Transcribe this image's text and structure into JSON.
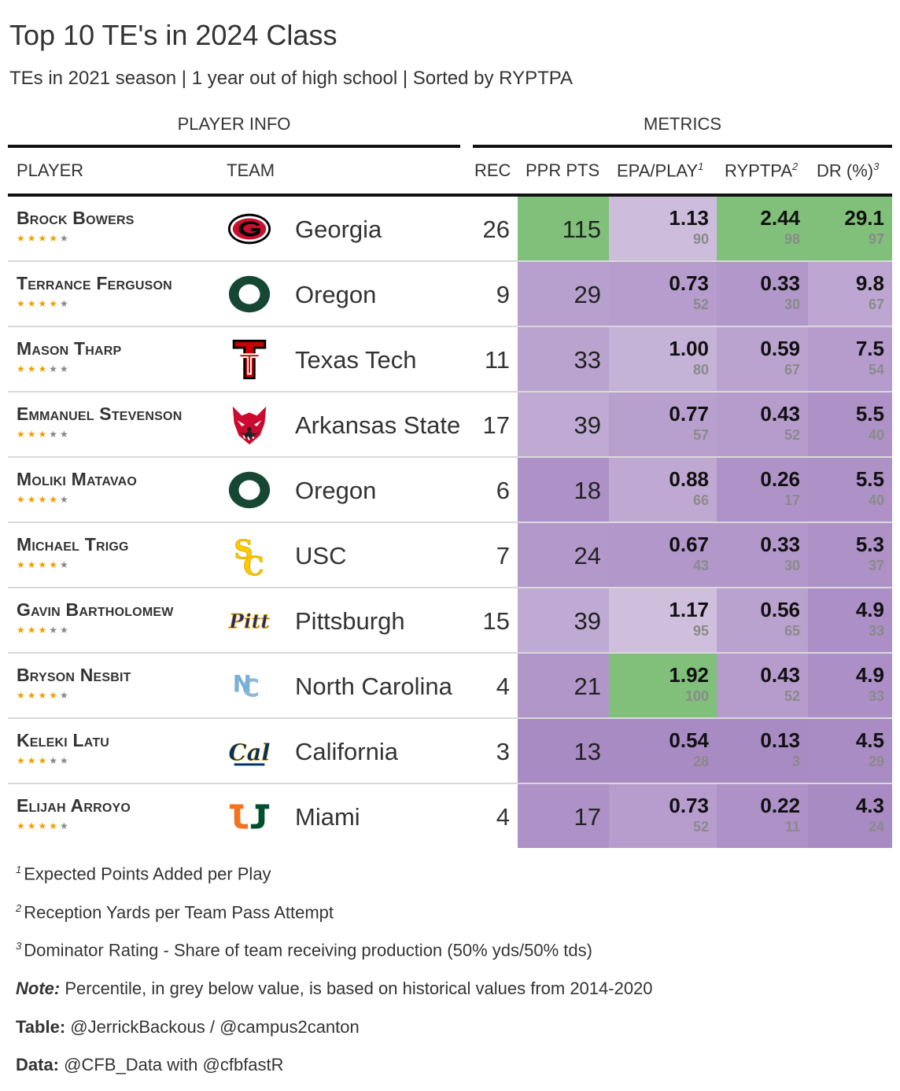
{
  "title": "Top 10 TE's in 2024 Class",
  "subtitle": "TEs in 2021 season | 1 year out of high school | Sorted by RYPTPA",
  "spanners": {
    "player_info": "PLAYER INFO",
    "metrics": "METRICS"
  },
  "columns": {
    "player": "PLAYER",
    "team": "TEAM",
    "rec": "REC",
    "ppr": "PPR PTS",
    "epa": "EPA/PLAY",
    "epa_sup": "1",
    "ryptpa": "RYPTPA",
    "ryptpa_sup": "2",
    "dr": "DR (%)",
    "dr_sup": "3"
  },
  "colors": {
    "purple_dark": "#a98bc4",
    "purple_light": "#f0ecf3",
    "green": "#80c07a",
    "star_on": "#f0a000",
    "star_off": "#888888"
  },
  "chart_data": {
    "type": "table",
    "rows": [
      {
        "player": "Brock Bowers",
        "stars": 4,
        "logo": "georgia-g-logo",
        "team": "Georgia",
        "rec": "26",
        "ppr": "115",
        "epa": "1.13",
        "epa_pct": "90",
        "ryptpa": "2.44",
        "ryptpa_pct": "98",
        "dr": "29.1",
        "dr_pct": "97"
      },
      {
        "player": "Terrance Ferguson",
        "stars": 4,
        "logo": "oregon-o-logo",
        "team": "Oregon",
        "rec": "9",
        "ppr": "29",
        "epa": "0.73",
        "epa_pct": "52",
        "ryptpa": "0.33",
        "ryptpa_pct": "30",
        "dr": "9.8",
        "dr_pct": "67"
      },
      {
        "player": "Mason Tharp",
        "stars": 3,
        "logo": "texas-tech-logo",
        "team": "Texas Tech",
        "rec": "11",
        "ppr": "33",
        "epa": "1.00",
        "epa_pct": "80",
        "ryptpa": "0.59",
        "ryptpa_pct": "67",
        "dr": "7.5",
        "dr_pct": "54"
      },
      {
        "player": "Emmanuel Stevenson",
        "stars": 3,
        "logo": "arkansas-state-wolf-logo",
        "team": "Arkansas State",
        "rec": "17",
        "ppr": "39",
        "epa": "0.77",
        "epa_pct": "57",
        "ryptpa": "0.43",
        "ryptpa_pct": "52",
        "dr": "5.5",
        "dr_pct": "40"
      },
      {
        "player": "Moliki Matavao",
        "stars": 4,
        "logo": "oregon-o-logo",
        "team": "Oregon",
        "rec": "6",
        "ppr": "18",
        "epa": "0.88",
        "epa_pct": "66",
        "ryptpa": "0.26",
        "ryptpa_pct": "17",
        "dr": "5.5",
        "dr_pct": "40"
      },
      {
        "player": "Michael Trigg",
        "stars": 4,
        "logo": "usc-sc-logo",
        "team": "USC",
        "rec": "7",
        "ppr": "24",
        "epa": "0.67",
        "epa_pct": "43",
        "ryptpa": "0.33",
        "ryptpa_pct": "30",
        "dr": "5.3",
        "dr_pct": "37"
      },
      {
        "player": "Gavin Bartholomew",
        "stars": 3,
        "logo": "pitt-logo",
        "team": "Pittsburgh",
        "rec": "15",
        "ppr": "39",
        "epa": "1.17",
        "epa_pct": "95",
        "ryptpa": "0.56",
        "ryptpa_pct": "65",
        "dr": "4.9",
        "dr_pct": "33"
      },
      {
        "player": "Bryson Nesbit",
        "stars": 4,
        "logo": "unc-nc-logo",
        "team": "North Carolina",
        "rec": "4",
        "ppr": "21",
        "epa": "1.92",
        "epa_pct": "100",
        "ryptpa": "0.43",
        "ryptpa_pct": "52",
        "dr": "4.9",
        "dr_pct": "33"
      },
      {
        "player": "Keleki Latu",
        "stars": 3,
        "logo": "cal-logo",
        "team": "California",
        "rec": "3",
        "ppr": "13",
        "epa": "0.54",
        "epa_pct": "28",
        "ryptpa": "0.13",
        "ryptpa_pct": "3",
        "dr": "4.5",
        "dr_pct": "29"
      },
      {
        "player": "Elijah Arroyo",
        "stars": 4,
        "logo": "miami-u-logo",
        "team": "Miami",
        "rec": "4",
        "ppr": "17",
        "epa": "0.73",
        "epa_pct": "52",
        "ryptpa": "0.22",
        "ryptpa_pct": "11",
        "dr": "4.3",
        "dr_pct": "24"
      }
    ]
  },
  "footnotes": {
    "f1": "Expected Points Added per Play",
    "f2": "Reception Yards per Team Pass Attempt",
    "f3": "Dominator Rating - Share of team receiving production (50% yds/50% tds)",
    "note_label": "Note:",
    "note_text": " Percentile, in grey below value, is based on historical values from 2014-2020",
    "table_label": "Table:",
    "table_text": " @JerrickBackous / @campus2canton",
    "data_label": "Data:",
    "data_text": " @CFB_Data with @cfbfastR"
  }
}
